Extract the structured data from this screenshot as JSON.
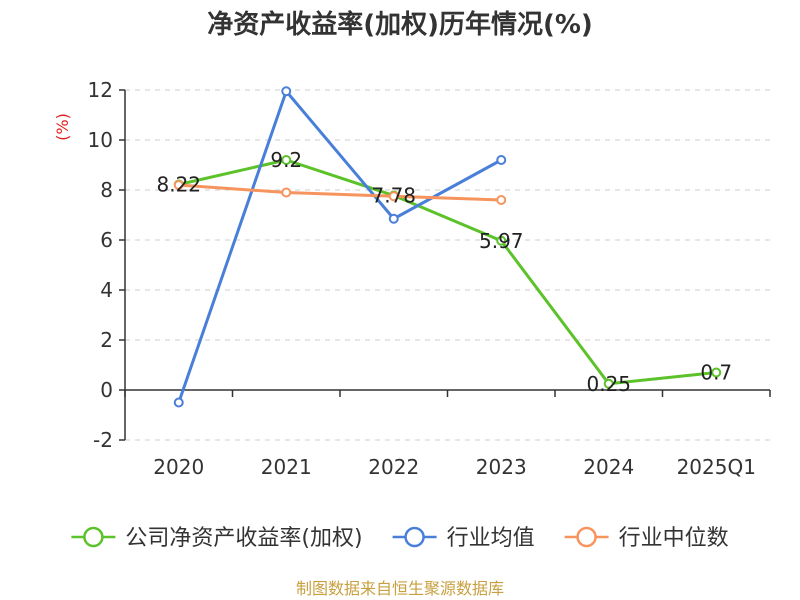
{
  "chart_data": {
    "type": "line",
    "title": "净资产收益率(加权)历年情况(%)",
    "xlabel": "",
    "ylabel": "(%)",
    "categories": [
      "2020",
      "2021",
      "2022",
      "2023",
      "2024",
      "2025Q1"
    ],
    "ylim": [
      -2,
      12
    ],
    "yticks": [
      -2,
      0,
      2,
      4,
      6,
      8,
      10,
      12
    ],
    "ytick_labels": [
      "-2",
      "0",
      "2",
      "4",
      "6",
      "8",
      "10",
      "12"
    ],
    "grid": true,
    "legend_position": "bottom",
    "series": [
      {
        "name": "公司净资产收益率(加权)",
        "color": "#5cc22a",
        "values": [
          8.22,
          9.2,
          7.78,
          5.97,
          0.25,
          0.7
        ],
        "labels": [
          "8.22",
          "9.2",
          "7.78",
          "5.97",
          "0.25",
          "0.7"
        ]
      },
      {
        "name": "行业均值",
        "color": "#4a7fd9",
        "values": [
          -0.5,
          11.95,
          6.85,
          9.2,
          null,
          null
        ]
      },
      {
        "name": "行业中位数",
        "color": "#f7945e",
        "values": [
          8.2,
          7.9,
          7.75,
          7.6,
          null,
          null
        ]
      }
    ]
  },
  "source": "制图数据来自恒生聚源数据库"
}
